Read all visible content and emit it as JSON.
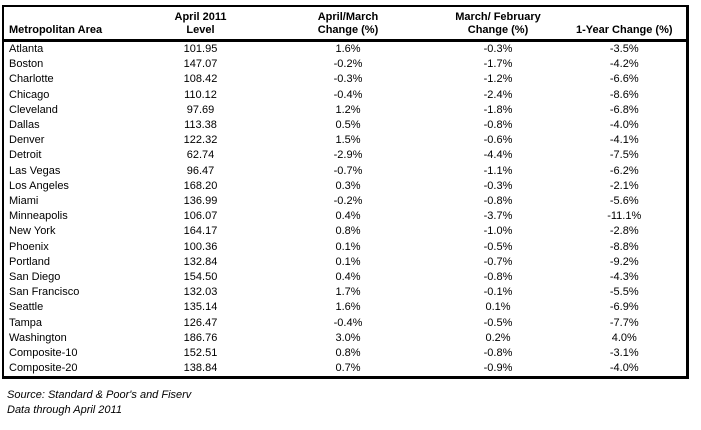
{
  "table": {
    "columns": [
      {
        "label": "Metropolitan Area"
      },
      {
        "label": "April 2011\nLevel"
      },
      {
        "label": "April/March\nChange (%)"
      },
      {
        "label": "March/ February\nChange (%)"
      },
      {
        "label": "1-Year Change (%)"
      }
    ],
    "rows": [
      {
        "area": "Atlanta",
        "level": "101.95",
        "april_march": "1.6%",
        "march_february": "-0.3%",
        "one_year": "-3.5%"
      },
      {
        "area": "Boston",
        "level": "147.07",
        "april_march": "-0.2%",
        "march_february": "-1.7%",
        "one_year": "-4.2%"
      },
      {
        "area": "Charlotte",
        "level": "108.42",
        "april_march": "-0.3%",
        "march_february": "-1.2%",
        "one_year": "-6.6%"
      },
      {
        "area": "Chicago",
        "level": "110.12",
        "april_march": "-0.4%",
        "march_february": "-2.4%",
        "one_year": "-8.6%"
      },
      {
        "area": "Cleveland",
        "level": "97.69",
        "april_march": "1.2%",
        "march_february": "-1.8%",
        "one_year": "-6.8%"
      },
      {
        "area": "Dallas",
        "level": "113.38",
        "april_march": "0.5%",
        "march_february": "-0.8%",
        "one_year": "-4.0%"
      },
      {
        "area": "Denver",
        "level": "122.32",
        "april_march": "1.5%",
        "march_february": "-0.6%",
        "one_year": "-4.1%"
      },
      {
        "area": "Detroit",
        "level": "62.74",
        "april_march": "-2.9%",
        "march_february": "-4.4%",
        "one_year": "-7.5%"
      },
      {
        "area": "Las Vegas",
        "level": "96.47",
        "april_march": "-0.7%",
        "march_february": "-1.1%",
        "one_year": "-6.2%"
      },
      {
        "area": "Los Angeles",
        "level": "168.20",
        "april_march": "0.3%",
        "march_february": "-0.3%",
        "one_year": "-2.1%"
      },
      {
        "area": "Miami",
        "level": "136.99",
        "april_march": "-0.2%",
        "march_february": "-0.8%",
        "one_year": "-5.6%"
      },
      {
        "area": "Minneapolis",
        "level": "106.07",
        "april_march": "0.4%",
        "march_february": "-3.7%",
        "one_year": "-11.1%"
      },
      {
        "area": "New York",
        "level": "164.17",
        "april_march": "0.8%",
        "march_february": "-1.0%",
        "one_year": "-2.8%"
      },
      {
        "area": "Phoenix",
        "level": "100.36",
        "april_march": "0.1%",
        "march_february": "-0.5%",
        "one_year": "-8.8%"
      },
      {
        "area": "Portland",
        "level": "132.84",
        "april_march": "0.1%",
        "march_february": "-0.7%",
        "one_year": "-9.2%"
      },
      {
        "area": "San Diego",
        "level": "154.50",
        "april_march": "0.4%",
        "march_february": "-0.8%",
        "one_year": "-4.3%"
      },
      {
        "area": "San Francisco",
        "level": "132.03",
        "april_march": "1.7%",
        "march_february": "-0.1%",
        "one_year": "-5.5%"
      },
      {
        "area": "Seattle",
        "level": "135.14",
        "april_march": "1.6%",
        "march_february": "0.1%",
        "one_year": "-6.9%"
      },
      {
        "area": "Tampa",
        "level": "126.47",
        "april_march": "-0.4%",
        "march_february": "-0.5%",
        "one_year": "-7.7%"
      },
      {
        "area": "Washington",
        "level": "186.76",
        "april_march": "3.0%",
        "march_february": "0.2%",
        "one_year": "4.0%"
      },
      {
        "area": "Composite-10",
        "level": "152.51",
        "april_march": "0.8%",
        "march_february": "-0.8%",
        "one_year": "-3.1%"
      },
      {
        "area": "Composite-20",
        "level": "138.84",
        "april_march": "0.7%",
        "march_february": "-0.9%",
        "one_year": "-4.0%"
      }
    ]
  },
  "footer": {
    "source": "Source: Standard & Poor's and Fiserv",
    "data_through": "Data through April 2011"
  }
}
